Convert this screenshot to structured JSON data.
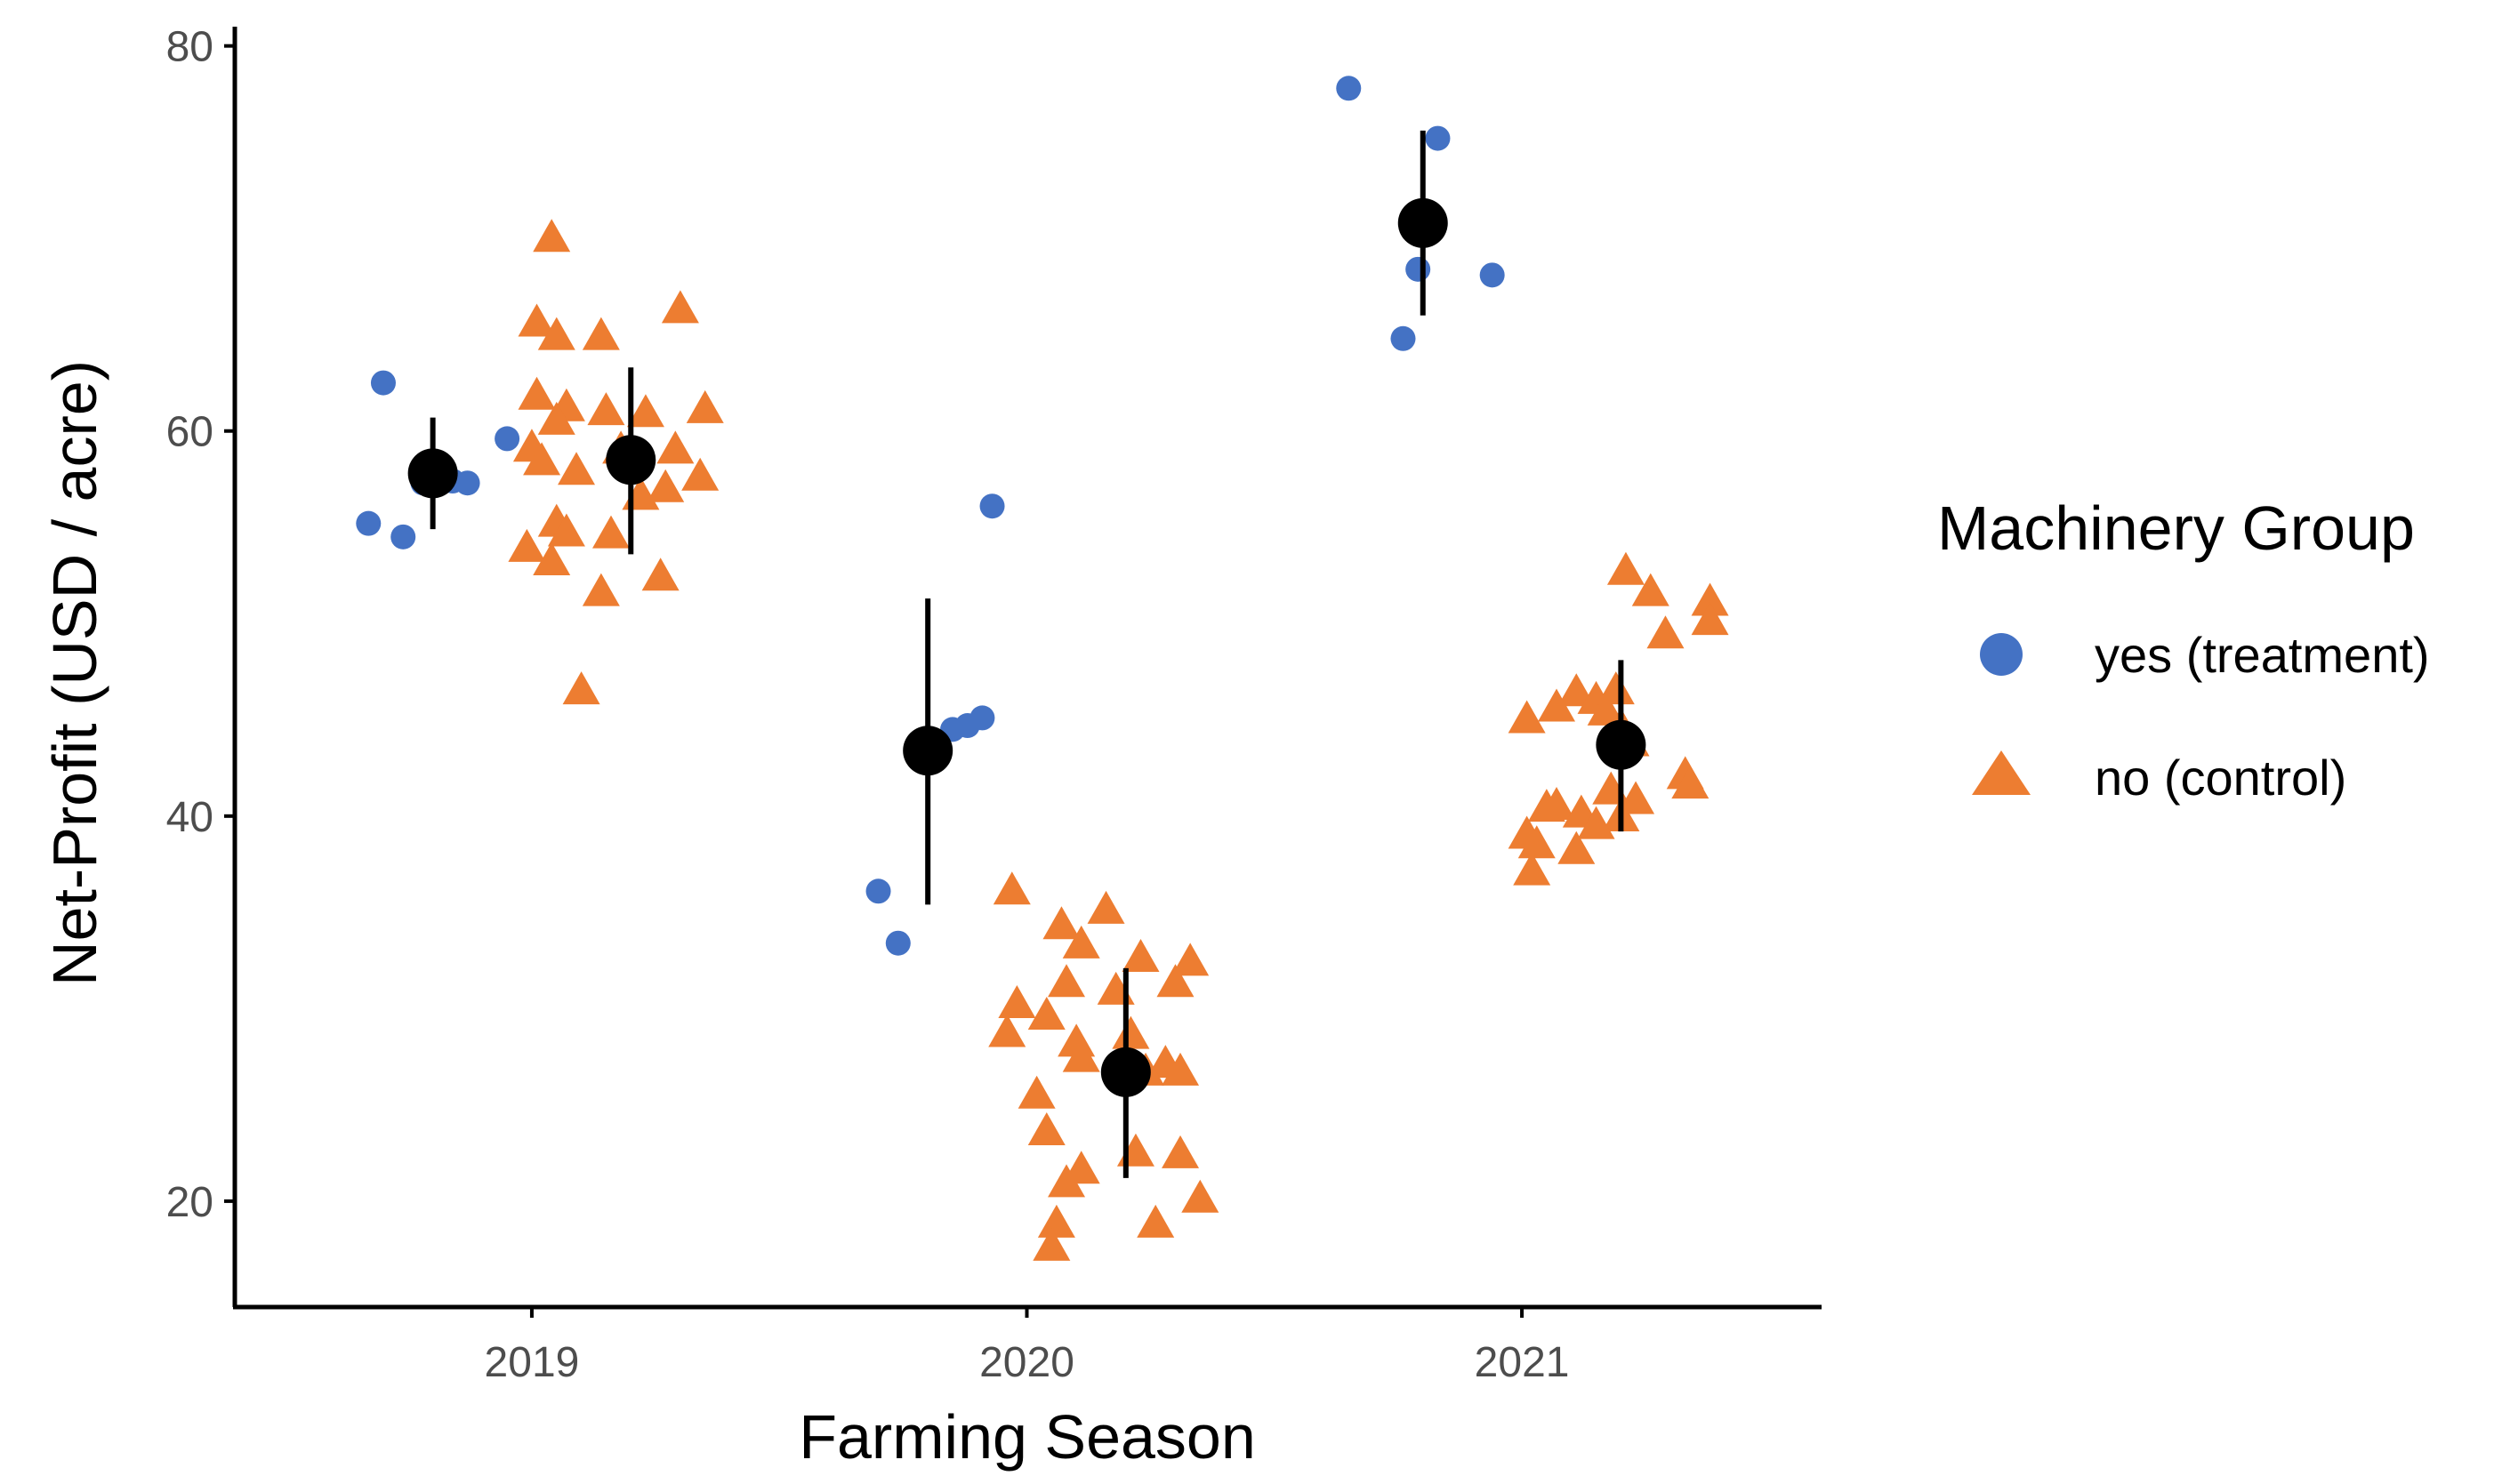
{
  "chart_data": {
    "type": "scatter",
    "title": "",
    "xlabel": "Farming Season",
    "ylabel": "Net-Profit (USD / acre)",
    "categories": [
      "2019",
      "2020",
      "2021"
    ],
    "yticks": [
      20,
      40,
      60,
      80
    ],
    "ytick_labels": [
      "20",
      "40",
      "60",
      "80"
    ],
    "ylim": [
      14.5,
      81
    ],
    "grid": false,
    "legend": {
      "title": "Machinery Group",
      "position": "right",
      "entries": [
        {
          "label": "yes (treatment)",
          "shape": "circle",
          "color": "#4472C4"
        },
        {
          "label": "no (control)",
          "shape": "triangle",
          "color": "#ED7D31"
        }
      ]
    },
    "series": [
      {
        "name": "yes (treatment)",
        "shape": "circle",
        "color": "#4472C4",
        "points": [
          {
            "x": 2018.7,
            "y": 62.5
          },
          {
            "x": 2018.67,
            "y": 55.2
          },
          {
            "x": 2018.74,
            "y": 54.5
          },
          {
            "x": 2018.78,
            "y": 57.3
          },
          {
            "x": 2018.8,
            "y": 57.6
          },
          {
            "x": 2018.84,
            "y": 57.4
          },
          {
            "x": 2018.87,
            "y": 57.3
          },
          {
            "x": 2018.95,
            "y": 59.6
          },
          {
            "x": 2019.7,
            "y": 36.1
          },
          {
            "x": 2019.74,
            "y": 33.4
          },
          {
            "x": 2019.85,
            "y": 44.5
          },
          {
            "x": 2019.88,
            "y": 44.7
          },
          {
            "x": 2019.91,
            "y": 45.1
          },
          {
            "x": 2019.93,
            "y": 56.1
          },
          {
            "x": 2020.65,
            "y": 77.8
          },
          {
            "x": 2020.76,
            "y": 64.8
          },
          {
            "x": 2020.79,
            "y": 68.4
          },
          {
            "x": 2020.83,
            "y": 75.2
          },
          {
            "x": 2020.94,
            "y": 68.1
          }
        ],
        "summary": [
          {
            "x": 2018.8,
            "mean": 57.8,
            "lower": 54.9,
            "upper": 60.7
          },
          {
            "x": 2019.8,
            "mean": 43.4,
            "lower": 35.4,
            "upper": 51.3
          },
          {
            "x": 2020.8,
            "mean": 70.8,
            "lower": 66.0,
            "upper": 75.6
          }
        ]
      },
      {
        "name": "no (control)",
        "shape": "triangle",
        "color": "#ED7D31",
        "points": [
          {
            "x": 2019.04,
            "y": 70.0
          },
          {
            "x": 2019.01,
            "y": 65.6
          },
          {
            "x": 2019.05,
            "y": 64.9
          },
          {
            "x": 2019.14,
            "y": 64.9
          },
          {
            "x": 2019.3,
            "y": 66.3
          },
          {
            "x": 2019.01,
            "y": 61.8
          },
          {
            "x": 2019.07,
            "y": 61.2
          },
          {
            "x": 2019.05,
            "y": 60.5
          },
          {
            "x": 2019.15,
            "y": 61.0
          },
          {
            "x": 2019.23,
            "y": 60.9
          },
          {
            "x": 2019.35,
            "y": 61.1
          },
          {
            "x": 2019.0,
            "y": 59.1
          },
          {
            "x": 2019.02,
            "y": 58.4
          },
          {
            "x": 2019.09,
            "y": 57.9
          },
          {
            "x": 2019.18,
            "y": 59.0
          },
          {
            "x": 2019.29,
            "y": 59.0
          },
          {
            "x": 2019.34,
            "y": 57.6
          },
          {
            "x": 2019.27,
            "y": 57.0
          },
          {
            "x": 2019.05,
            "y": 55.2
          },
          {
            "x": 2019.07,
            "y": 54.7
          },
          {
            "x": 2019.16,
            "y": 54.6
          },
          {
            "x": 2018.99,
            "y": 53.9
          },
          {
            "x": 2019.04,
            "y": 53.2
          },
          {
            "x": 2019.14,
            "y": 51.6
          },
          {
            "x": 2019.26,
            "y": 52.4
          },
          {
            "x": 2019.1,
            "y": 46.5
          },
          {
            "x": 2019.22,
            "y": 56.6
          },
          {
            "x": 2019.97,
            "y": 36.1
          },
          {
            "x": 2020.07,
            "y": 34.3
          },
          {
            "x": 2020.16,
            "y": 35.1
          },
          {
            "x": 2020.11,
            "y": 33.3
          },
          {
            "x": 2020.23,
            "y": 32.6
          },
          {
            "x": 2020.33,
            "y": 32.4
          },
          {
            "x": 2020.3,
            "y": 31.3
          },
          {
            "x": 2020.08,
            "y": 31.3
          },
          {
            "x": 2020.18,
            "y": 30.9
          },
          {
            "x": 2019.98,
            "y": 30.2
          },
          {
            "x": 2020.04,
            "y": 29.6
          },
          {
            "x": 2020.1,
            "y": 28.2
          },
          {
            "x": 2019.96,
            "y": 28.7
          },
          {
            "x": 2020.21,
            "y": 28.6
          },
          {
            "x": 2020.28,
            "y": 27.1
          },
          {
            "x": 2020.11,
            "y": 27.4
          },
          {
            "x": 2020.24,
            "y": 26.7
          },
          {
            "x": 2020.31,
            "y": 26.7
          },
          {
            "x": 2020.02,
            "y": 25.5
          },
          {
            "x": 2020.04,
            "y": 23.6
          },
          {
            "x": 2020.11,
            "y": 21.6
          },
          {
            "x": 2020.08,
            "y": 20.9
          },
          {
            "x": 2020.22,
            "y": 22.5
          },
          {
            "x": 2020.31,
            "y": 22.4
          },
          {
            "x": 2020.35,
            "y": 20.1
          },
          {
            "x": 2020.26,
            "y": 18.8
          },
          {
            "x": 2020.06,
            "y": 18.8
          },
          {
            "x": 2020.05,
            "y": 17.6
          },
          {
            "x": 2021.21,
            "y": 52.7
          },
          {
            "x": 2021.26,
            "y": 51.6
          },
          {
            "x": 2021.38,
            "y": 51.1
          },
          {
            "x": 2021.38,
            "y": 50.1
          },
          {
            "x": 2021.29,
            "y": 49.4
          },
          {
            "x": 2021.11,
            "y": 46.4
          },
          {
            "x": 2021.15,
            "y": 46.0
          },
          {
            "x": 2021.19,
            "y": 46.5
          },
          {
            "x": 2021.17,
            "y": 45.4
          },
          {
            "x": 2021.07,
            "y": 45.6
          },
          {
            "x": 2021.01,
            "y": 45.0
          },
          {
            "x": 2021.2,
            "y": 44.6
          },
          {
            "x": 2021.22,
            "y": 43.8
          },
          {
            "x": 2021.33,
            "y": 42.1
          },
          {
            "x": 2021.34,
            "y": 41.6
          },
          {
            "x": 2021.18,
            "y": 41.3
          },
          {
            "x": 2021.23,
            "y": 40.8
          },
          {
            "x": 2021.07,
            "y": 40.5
          },
          {
            "x": 2021.05,
            "y": 40.4
          },
          {
            "x": 2021.12,
            "y": 40.1
          },
          {
            "x": 2021.2,
            "y": 39.9
          },
          {
            "x": 2021.15,
            "y": 39.5
          },
          {
            "x": 2021.01,
            "y": 39.0
          },
          {
            "x": 2021.03,
            "y": 38.5
          },
          {
            "x": 2021.11,
            "y": 38.2
          },
          {
            "x": 2021.02,
            "y": 37.1
          }
        ],
        "summary": [
          {
            "x": 2019.2,
            "mean": 58.5,
            "lower": 53.6,
            "upper": 63.3
          },
          {
            "x": 2020.2,
            "mean": 26.7,
            "lower": 21.2,
            "upper": 32.1
          },
          {
            "x": 2021.2,
            "mean": 43.7,
            "lower": 39.2,
            "upper": 48.1
          }
        ]
      }
    ]
  }
}
